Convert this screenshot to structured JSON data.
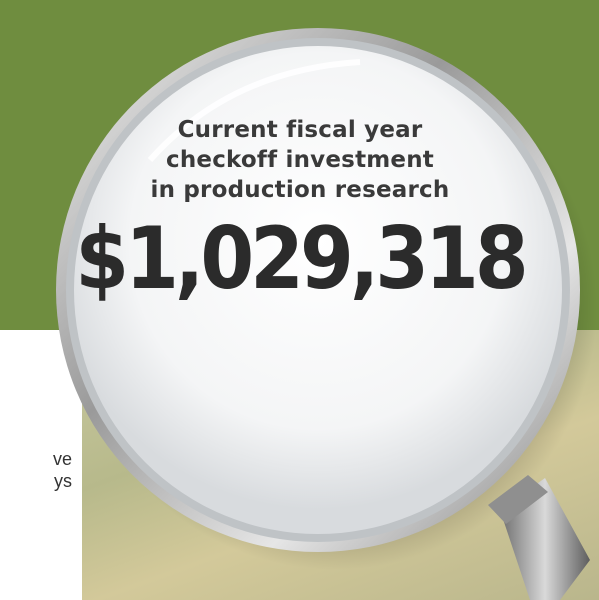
{
  "caption": {
    "line1": "Current fiscal year",
    "line2": "checkoff investment",
    "line3": "in production research"
  },
  "amount": "$1,029,318",
  "side_text": {
    "line1": "ve",
    "line2": "ys"
  },
  "colors": {
    "green_band": "#6f8d3f",
    "text": "#3a3a3a",
    "amount": "#2b2b2b"
  },
  "icons": [
    "magnifying-glass-icon"
  ]
}
